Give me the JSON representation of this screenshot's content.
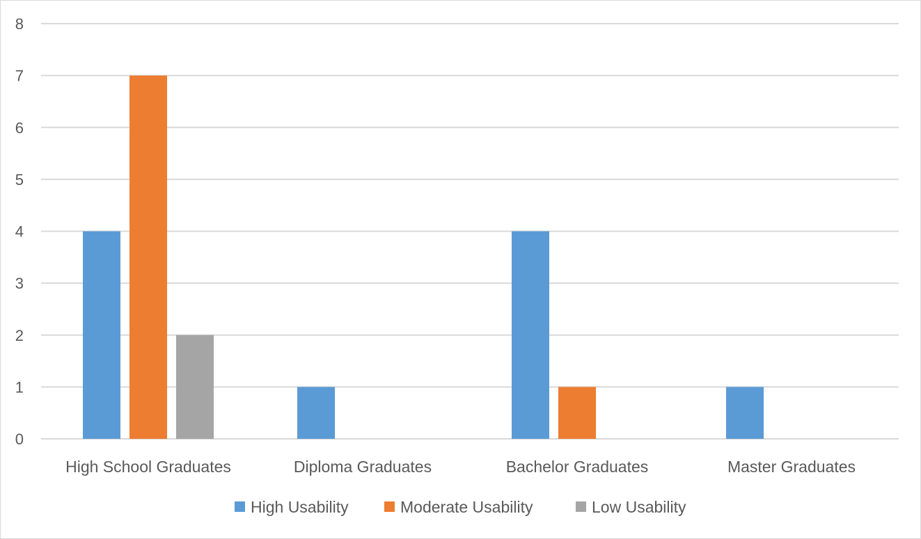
{
  "chart_data": {
    "type": "bar",
    "title": "",
    "xlabel": "",
    "ylabel": "",
    "categories": [
      "High School Graduates",
      "Diploma Graduates",
      "Bachelor Graduates",
      "Master Graduates"
    ],
    "series": [
      {
        "name": "High Usability",
        "color": "#5b9bd5",
        "values": [
          4,
          1,
          4,
          1
        ]
      },
      {
        "name": "Moderate Usability",
        "color": "#ed7d31",
        "values": [
          7,
          0,
          1,
          0
        ]
      },
      {
        "name": "Low Usability",
        "color": "#a5a5a5",
        "values": [
          2,
          0,
          0,
          0
        ]
      }
    ],
    "ylim": [
      0,
      8
    ],
    "yticks": [
      "0",
      "1",
      "2",
      "3",
      "4",
      "5",
      "6",
      "7",
      "8"
    ],
    "grid": true,
    "legend_position": "bottom"
  }
}
